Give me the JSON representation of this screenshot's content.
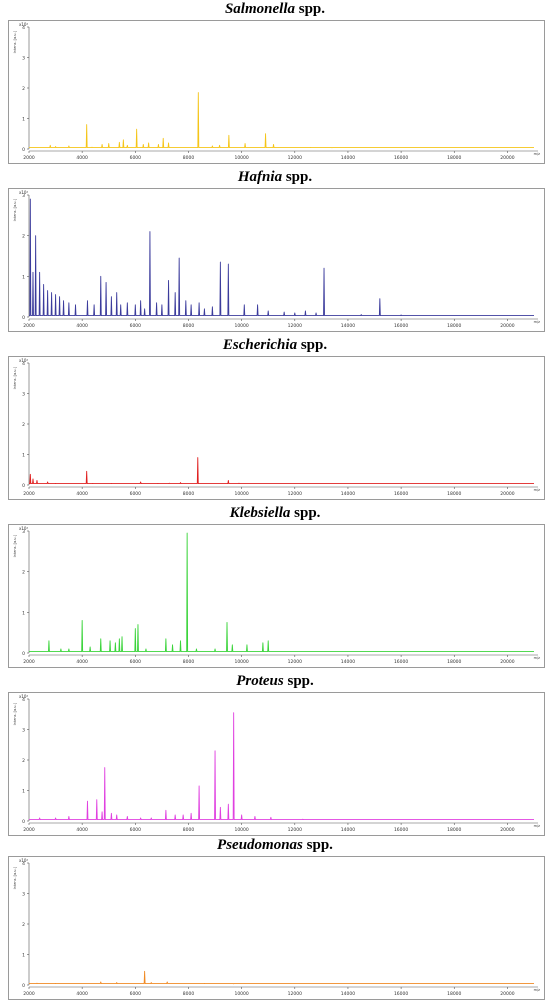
{
  "chart_data": [
    {
      "type": "line",
      "title_genus": "Salmonella",
      "title_suffix": " spp.",
      "ylabel": "Intens. [a.u.]",
      "y_multiplier": "x10⁴",
      "xlabel": "m/z",
      "xlim": [
        2000,
        21000
      ],
      "ylim": [
        0,
        4
      ],
      "x_ticks": [
        2000,
        4000,
        6000,
        8000,
        10000,
        12000,
        14000,
        16000,
        18000,
        20000
      ],
      "y_ticks": [
        0,
        1,
        2,
        3,
        4
      ],
      "color": "#f5c518",
      "peaks": [
        [
          2800,
          0.12
        ],
        [
          3000,
          0.08
        ],
        [
          3500,
          0.1
        ],
        [
          4170,
          0.8
        ],
        [
          4370,
          0.06
        ],
        [
          4750,
          0.15
        ],
        [
          5000,
          0.18
        ],
        [
          5400,
          0.22
        ],
        [
          5550,
          0.3
        ],
        [
          5700,
          0.12
        ],
        [
          6050,
          0.65
        ],
        [
          6300,
          0.15
        ],
        [
          6500,
          0.2
        ],
        [
          6870,
          0.15
        ],
        [
          7050,
          0.35
        ],
        [
          7250,
          0.2
        ],
        [
          8370,
          1.85
        ],
        [
          8900,
          0.1
        ],
        [
          9170,
          0.12
        ],
        [
          9520,
          0.45
        ],
        [
          10130,
          0.18
        ],
        [
          10900,
          0.5
        ],
        [
          11200,
          0.15
        ],
        [
          12600,
          0.05
        ],
        [
          13400,
          0.04
        ]
      ]
    },
    {
      "type": "line",
      "title_genus": "Hafnia",
      "title_suffix": " spp.",
      "ylabel": "Intens. [a.u.]",
      "y_multiplier": "x10⁴",
      "xlabel": "m/z",
      "xlim": [
        2000,
        21000
      ],
      "ylim": [
        0,
        3
      ],
      "x_ticks": [
        2000,
        4000,
        6000,
        8000,
        10000,
        12000,
        14000,
        16000,
        18000,
        20000
      ],
      "y_ticks": [
        0,
        1,
        2,
        3
      ],
      "color": "#3b3b9c",
      "peaks": [
        [
          2050,
          2.9
        ],
        [
          2150,
          1.1
        ],
        [
          2250,
          2.0
        ],
        [
          2400,
          1.1
        ],
        [
          2550,
          0.8
        ],
        [
          2700,
          0.65
        ],
        [
          2850,
          0.6
        ],
        [
          3000,
          0.55
        ],
        [
          3150,
          0.5
        ],
        [
          3300,
          0.4
        ],
        [
          3500,
          0.35
        ],
        [
          3750,
          0.3
        ],
        [
          4200,
          0.4
        ],
        [
          4450,
          0.3
        ],
        [
          4700,
          1.0
        ],
        [
          4900,
          0.85
        ],
        [
          5100,
          0.5
        ],
        [
          5300,
          0.6
        ],
        [
          5450,
          0.3
        ],
        [
          5700,
          0.35
        ],
        [
          6000,
          0.3
        ],
        [
          6200,
          0.4
        ],
        [
          6350,
          0.2
        ],
        [
          6550,
          2.1
        ],
        [
          6800,
          0.35
        ],
        [
          7000,
          0.3
        ],
        [
          7250,
          0.9
        ],
        [
          7500,
          0.6
        ],
        [
          7650,
          1.45
        ],
        [
          7900,
          0.4
        ],
        [
          8100,
          0.3
        ],
        [
          8400,
          0.35
        ],
        [
          8600,
          0.2
        ],
        [
          8900,
          0.25
        ],
        [
          9200,
          1.35
        ],
        [
          9500,
          1.3
        ],
        [
          10100,
          0.3
        ],
        [
          10600,
          0.3
        ],
        [
          11000,
          0.15
        ],
        [
          11600,
          0.12
        ],
        [
          12000,
          0.1
        ],
        [
          12400,
          0.15
        ],
        [
          12800,
          0.1
        ],
        [
          13100,
          1.2
        ],
        [
          14500,
          0.06
        ],
        [
          15200,
          0.45
        ],
        [
          16000,
          0.05
        ]
      ]
    },
    {
      "type": "line",
      "title_genus": "Escherichia",
      "title_suffix": " spp.",
      "ylabel": "Intens. [a.u.]",
      "y_multiplier": "x10⁴",
      "xlabel": "m/z",
      "xlim": [
        2000,
        21000
      ],
      "ylim": [
        0,
        4
      ],
      "x_ticks": [
        2000,
        4000,
        6000,
        8000,
        10000,
        12000,
        14000,
        16000,
        18000,
        20000
      ],
      "y_ticks": [
        0,
        1,
        2,
        3,
        4
      ],
      "color": "#e02020",
      "peaks": [
        [
          2050,
          0.35
        ],
        [
          2150,
          0.2
        ],
        [
          2300,
          0.15
        ],
        [
          2700,
          0.1
        ],
        [
          3000,
          0.05
        ],
        [
          4170,
          0.45
        ],
        [
          4400,
          0.05
        ],
        [
          5100,
          0.05
        ],
        [
          6200,
          0.1
        ],
        [
          6850,
          0.05
        ],
        [
          7280,
          0.06
        ],
        [
          7700,
          0.08
        ],
        [
          8350,
          0.9
        ],
        [
          9500,
          0.15
        ],
        [
          9900,
          0.06
        ]
      ]
    },
    {
      "type": "line",
      "title_genus": "Klebsiella",
      "title_suffix": " spp.",
      "ylabel": "Intens. [a.u.]",
      "y_multiplier": "x10⁴",
      "xlabel": "m/z",
      "xlim": [
        2000,
        21000
      ],
      "ylim": [
        0,
        3
      ],
      "x_ticks": [
        2000,
        4000,
        6000,
        8000,
        10000,
        12000,
        14000,
        16000,
        18000,
        20000
      ],
      "y_ticks": [
        0,
        1,
        2,
        3
      ],
      "color": "#3ad43a",
      "peaks": [
        [
          2750,
          0.3
        ],
        [
          3200,
          0.1
        ],
        [
          3500,
          0.1
        ],
        [
          4000,
          0.8
        ],
        [
          4300,
          0.15
        ],
        [
          4700,
          0.35
        ],
        [
          5050,
          0.3
        ],
        [
          5250,
          0.25
        ],
        [
          5400,
          0.35
        ],
        [
          5500,
          0.4
        ],
        [
          6000,
          0.6
        ],
        [
          6100,
          0.7
        ],
        [
          6400,
          0.1
        ],
        [
          7150,
          0.35
        ],
        [
          7400,
          0.2
        ],
        [
          7700,
          0.3
        ],
        [
          7950,
          2.95
        ],
        [
          8300,
          0.1
        ],
        [
          9000,
          0.1
        ],
        [
          9450,
          0.75
        ],
        [
          9650,
          0.2
        ],
        [
          10200,
          0.2
        ],
        [
          10800,
          0.25
        ],
        [
          11000,
          0.3
        ]
      ]
    },
    {
      "type": "line",
      "title_genus": "Proteus",
      "title_suffix": " spp.",
      "ylabel": "Intens. [a.u.]",
      "y_multiplier": "x10⁴",
      "xlabel": "m/z",
      "xlim": [
        2000,
        21000
      ],
      "ylim": [
        0,
        4
      ],
      "x_ticks": [
        2000,
        4000,
        6000,
        8000,
        10000,
        12000,
        14000,
        16000,
        18000,
        20000
      ],
      "y_ticks": [
        0,
        1,
        2,
        3,
        4
      ],
      "color": "#e040e0",
      "peaks": [
        [
          2400,
          0.1
        ],
        [
          3000,
          0.1
        ],
        [
          3500,
          0.15
        ],
        [
          4200,
          0.65
        ],
        [
          4550,
          0.7
        ],
        [
          4750,
          0.3
        ],
        [
          4850,
          1.75
        ],
        [
          5100,
          0.25
        ],
        [
          5300,
          0.2
        ],
        [
          5700,
          0.15
        ],
        [
          6200,
          0.1
        ],
        [
          6600,
          0.1
        ],
        [
          7150,
          0.35
        ],
        [
          7500,
          0.2
        ],
        [
          7800,
          0.2
        ],
        [
          8100,
          0.25
        ],
        [
          8400,
          1.15
        ],
        [
          9000,
          2.3
        ],
        [
          9200,
          0.45
        ],
        [
          9500,
          0.55
        ],
        [
          9700,
          3.55
        ],
        [
          10000,
          0.2
        ],
        [
          10500,
          0.15
        ],
        [
          11100,
          0.12
        ],
        [
          12300,
          0.06
        ]
      ]
    },
    {
      "type": "line",
      "title_genus": "Pseudomonas",
      "title_suffix": " spp.",
      "ylabel": "Intens. [a.u.]",
      "y_multiplier": "x10⁴",
      "xlabel": "m/z",
      "xlim": [
        2000,
        21000
      ],
      "ylim": [
        0,
        4
      ],
      "x_ticks": [
        2000,
        4000,
        6000,
        8000,
        10000,
        12000,
        14000,
        16000,
        18000,
        20000
      ],
      "y_ticks": [
        0,
        1,
        2,
        3,
        4
      ],
      "color": "#f08a24",
      "peaks": [
        [
          2300,
          0.06
        ],
        [
          3000,
          0.05
        ],
        [
          4700,
          0.1
        ],
        [
          5300,
          0.08
        ],
        [
          6350,
          0.45
        ],
        [
          6600,
          0.08
        ],
        [
          7200,
          0.1
        ],
        [
          8600,
          0.05
        ],
        [
          9700,
          0.04
        ]
      ]
    }
  ]
}
